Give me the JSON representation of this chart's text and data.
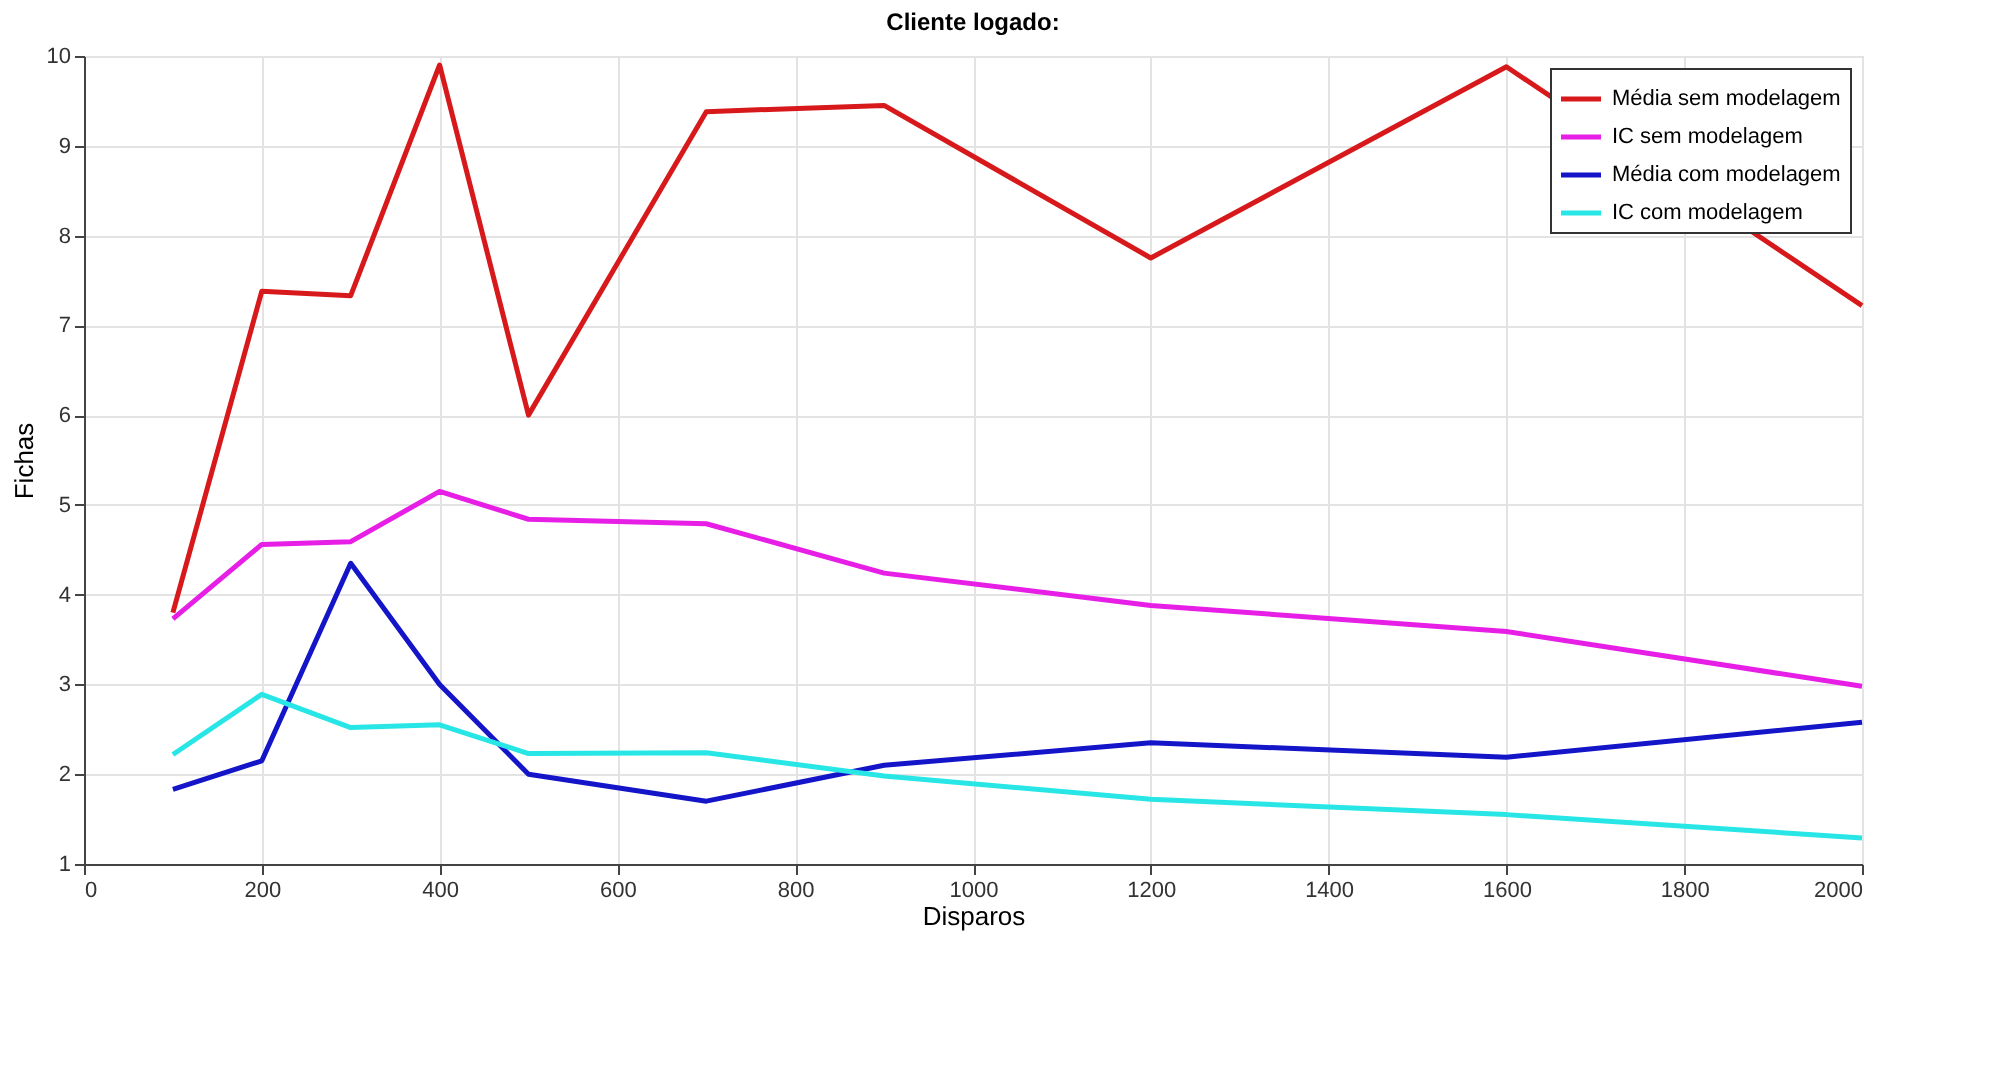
{
  "chart_data": {
    "type": "line",
    "title": "Cliente logado:",
    "xlabel": "Disparos",
    "ylabel": "Fichas",
    "x": [
      100,
      200,
      300,
      400,
      500,
      700,
      900,
      1200,
      1600,
      2000
    ],
    "series": [
      {
        "name": "Média sem modelagem",
        "color": "#d7191c",
        "values": [
          3.8,
          7.38,
          7.33,
          9.9,
          6.0,
          9.38,
          9.45,
          7.75,
          9.88,
          7.22
        ]
      },
      {
        "name": "IC sem modelagem",
        "color": "#e61ee6",
        "values": [
          3.73,
          4.56,
          4.59,
          5.15,
          4.84,
          4.79,
          4.24,
          3.88,
          3.59,
          2.98
        ]
      },
      {
        "name": "Média com modelagem",
        "color": "#1414c8",
        "values": [
          1.83,
          2.15,
          4.35,
          3.0,
          2.0,
          1.7,
          2.1,
          2.35,
          2.19,
          2.58
        ]
      },
      {
        "name": "IC com modelagem",
        "color": "#28e6e6",
        "values": [
          2.22,
          2.89,
          2.52,
          2.55,
          2.23,
          2.24,
          1.98,
          1.72,
          1.55,
          1.29
        ]
      }
    ],
    "xlim": [
      0,
      2000
    ],
    "xticks": [
      0,
      200,
      400,
      600,
      800,
      1000,
      1200,
      1400,
      1600,
      1800,
      2000
    ],
    "ylim": [
      1,
      10
    ],
    "yticks": [
      1,
      2,
      3,
      4,
      5,
      6,
      7,
      8,
      9,
      10
    ],
    "grid": true,
    "legend": "top right",
    "marker": "none",
    "line_style": "solid"
  }
}
